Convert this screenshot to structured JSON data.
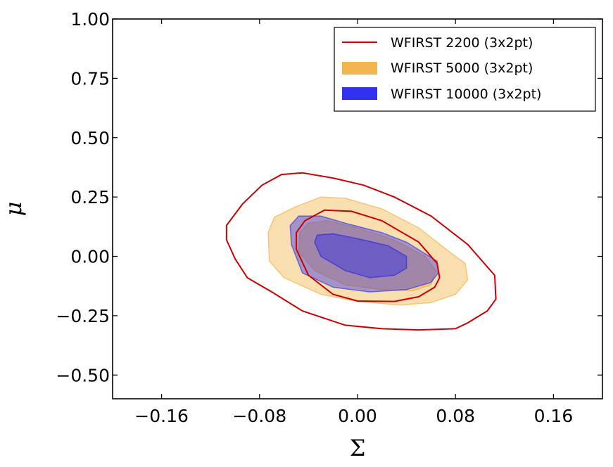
{
  "chart_data": {
    "type": "contour",
    "xlabel": "Σ",
    "ylabel": "μ",
    "xlim": [
      -0.2,
      0.2
    ],
    "ylim": [
      -0.6,
      1.0
    ],
    "xticks": [
      -0.16,
      -0.08,
      0.0,
      0.08,
      0.16
    ],
    "xtick_labels": [
      "−0.16",
      "−0.08",
      "0.00",
      "0.08",
      "0.16"
    ],
    "yticks": [
      1.0,
      0.75,
      0.5,
      0.25,
      0.0,
      -0.25,
      -0.5
    ],
    "ytick_labels": [
      "1.00",
      "0.75",
      "0.50",
      "0.25",
      "0.00",
      "−0.25",
      "−0.50"
    ],
    "legend_position": "top-right",
    "series": [
      {
        "name": "WFIRST 2200 (3x2pt)",
        "style": "line",
        "color": "#cc0000",
        "contours": [
          [
            [
              -0.107,
              0.13
            ],
            [
              -0.094,
              0.22
            ],
            [
              -0.078,
              0.3
            ],
            [
              -0.062,
              0.345
            ],
            [
              -0.045,
              0.352
            ],
            [
              -0.02,
              0.33
            ],
            [
              0.005,
              0.3
            ],
            [
              0.03,
              0.25
            ],
            [
              0.06,
              0.17
            ],
            [
              0.09,
              0.05
            ],
            [
              0.112,
              -0.08
            ],
            [
              0.113,
              -0.18
            ],
            [
              0.106,
              -0.23
            ],
            [
              0.09,
              -0.28
            ],
            [
              0.08,
              -0.305
            ],
            [
              0.05,
              -0.31
            ],
            [
              0.02,
              -0.305
            ],
            [
              -0.01,
              -0.29
            ],
            [
              -0.045,
              -0.23
            ],
            [
              -0.07,
              -0.15
            ],
            [
              -0.09,
              -0.09
            ],
            [
              -0.1,
              -0.01
            ],
            [
              -0.107,
              0.07
            ]
          ],
          [
            [
              -0.05,
              0.1
            ],
            [
              -0.043,
              0.15
            ],
            [
              -0.027,
              0.195
            ],
            [
              -0.005,
              0.19
            ],
            [
              0.02,
              0.15
            ],
            [
              0.05,
              0.06
            ],
            [
              0.065,
              -0.03
            ],
            [
              0.067,
              -0.09
            ],
            [
              0.063,
              -0.13
            ],
            [
              0.05,
              -0.17
            ],
            [
              0.03,
              -0.19
            ],
            [
              0.0,
              -0.188
            ],
            [
              -0.02,
              -0.16
            ],
            [
              -0.04,
              -0.08
            ],
            [
              -0.05,
              0.03
            ]
          ]
        ]
      },
      {
        "name": "WFIRST 5000 (3x2pt)",
        "style": "fill",
        "color": "#f0a830",
        "contours": [
          [
            [
              -0.073,
              0.1
            ],
            [
              -0.068,
              0.165
            ],
            [
              -0.05,
              0.21
            ],
            [
              -0.03,
              0.25
            ],
            [
              -0.01,
              0.245
            ],
            [
              0.02,
              0.2
            ],
            [
              0.05,
              0.12
            ],
            [
              0.075,
              0.02
            ],
            [
              0.088,
              -0.03
            ],
            [
              0.09,
              -0.1
            ],
            [
              0.08,
              -0.16
            ],
            [
              0.06,
              -0.195
            ],
            [
              0.035,
              -0.205
            ],
            [
              0.0,
              -0.19
            ],
            [
              -0.03,
              -0.16
            ],
            [
              -0.06,
              -0.09
            ],
            [
              -0.072,
              -0.02
            ]
          ],
          [
            [
              -0.047,
              0.1
            ],
            [
              -0.04,
              0.14
            ],
            [
              -0.025,
              0.15
            ],
            [
              0.0,
              0.12
            ],
            [
              0.03,
              0.07
            ],
            [
              0.055,
              0.0
            ],
            [
              0.064,
              -0.06
            ],
            [
              0.06,
              -0.12
            ],
            [
              0.045,
              -0.145
            ],
            [
              0.02,
              -0.14
            ],
            [
              -0.01,
              -0.12
            ],
            [
              -0.035,
              -0.06
            ],
            [
              -0.048,
              0.02
            ]
          ]
        ]
      },
      {
        "name": "WFIRST 10000 (3x2pt)",
        "style": "fill",
        "color": "#1a1aee",
        "contours": [
          [
            [
              -0.055,
              0.13
            ],
            [
              -0.048,
              0.17
            ],
            [
              -0.03,
              0.17
            ],
            [
              -0.01,
              0.14
            ],
            [
              0.02,
              0.1
            ],
            [
              0.04,
              0.06
            ],
            [
              0.065,
              -0.02
            ],
            [
              0.066,
              -0.07
            ],
            [
              0.06,
              -0.11
            ],
            [
              0.04,
              -0.14
            ],
            [
              0.01,
              -0.15
            ],
            [
              -0.02,
              -0.13
            ],
            [
              -0.045,
              -0.07
            ],
            [
              -0.054,
              0.05
            ]
          ],
          [
            [
              -0.033,
              0.09
            ],
            [
              -0.02,
              0.095
            ],
            [
              0.0,
              0.075
            ],
            [
              0.025,
              0.045
            ],
            [
              0.04,
              0.0
            ],
            [
              0.04,
              -0.05
            ],
            [
              0.03,
              -0.08
            ],
            [
              0.01,
              -0.09
            ],
            [
              -0.01,
              -0.06
            ],
            [
              -0.03,
              0.0
            ],
            [
              -0.035,
              0.06
            ]
          ]
        ]
      }
    ]
  }
}
